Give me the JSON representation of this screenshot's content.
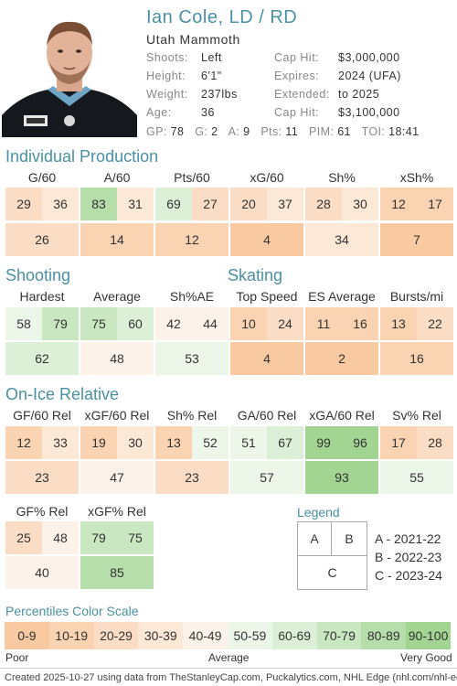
{
  "player": {
    "name": "Ian Cole, LD / RD",
    "team": "Utah Mammoth"
  },
  "bio": {
    "shoots_label": "Shoots:",
    "shoots": "Left",
    "height_label": "Height:",
    "height": "6'1\"",
    "weight_label": "Weight:",
    "weight": "237lbs",
    "age_label": "Age:",
    "age": "36",
    "caphit1_label": "Cap Hit:",
    "caphit1": "$3,000,000",
    "expires_label": "Expires:",
    "expires": "2024 (UFA)",
    "extended_label": "Extended:",
    "extended": "to 2025",
    "caphit2_label": "Cap Hit:",
    "caphit2": "$3,100,000"
  },
  "stats": {
    "gp_label": "GP:",
    "gp": "78",
    "g_label": "G:",
    "g": "2",
    "a_label": "A:",
    "a": "9",
    "pts_label": "Pts:",
    "pts": "11",
    "pim_label": "PIM:",
    "pim": "61",
    "toi_label": "TOI:",
    "toi": "18:41"
  },
  "sections": {
    "individual": "Individual Production",
    "shooting": "Shooting",
    "skating": "Skating",
    "onice": "On-Ice Relative"
  },
  "individual": [
    {
      "label": "G/60",
      "a": "29",
      "b": "36",
      "c": "26"
    },
    {
      "label": "A/60",
      "a": "83",
      "b": "31",
      "c": "14"
    },
    {
      "label": "Pts/60",
      "a": "69",
      "b": "27",
      "c": "12"
    },
    {
      "label": "xG/60",
      "a": "20",
      "b": "37",
      "c": "4"
    },
    {
      "label": "Sh%",
      "a": "28",
      "b": "30",
      "c": "34"
    },
    {
      "label": "xSh%",
      "a": "12",
      "b": "17",
      "c": "7"
    }
  ],
  "shooting": [
    {
      "label": "Hardest",
      "a": "58",
      "b": "79",
      "c": "62"
    },
    {
      "label": "Average",
      "a": "75",
      "b": "60",
      "c": "48"
    },
    {
      "label": "Sh%AE",
      "a": "42",
      "b": "44",
      "c": "53"
    }
  ],
  "skating": [
    {
      "label": "Top Speed",
      "a": "10",
      "b": "24",
      "c": "4"
    },
    {
      "label": "ES Average",
      "a": "11",
      "b": "16",
      "c": "2"
    },
    {
      "label": "Bursts/mi",
      "a": "13",
      "b": "22",
      "c": "16"
    }
  ],
  "onice_row1": [
    {
      "label": "GF/60 Rel",
      "a": "12",
      "b": "33",
      "c": "23"
    },
    {
      "label": "xGF/60 Rel",
      "a": "19",
      "b": "30",
      "c": "47"
    },
    {
      "label": "Sh% Rel",
      "a": "13",
      "b": "52",
      "c": "23"
    },
    {
      "label": "GA/60 Rel",
      "a": "51",
      "b": "67",
      "c": "57"
    },
    {
      "label": "xGA/60 Rel",
      "a": "99",
      "b": "96",
      "c": "93"
    },
    {
      "label": "Sv% Rel",
      "a": "17",
      "b": "28",
      "c": "55"
    }
  ],
  "onice_row2": [
    {
      "label": "GF% Rel",
      "a": "25",
      "b": "48",
      "c": "40"
    },
    {
      "label": "xGF% Rel",
      "a": "79",
      "b": "75",
      "c": "85"
    }
  ],
  "legend": {
    "title": "Legend",
    "a": "A",
    "b": "B",
    "c": "C",
    "a_text": "A - 2021-22",
    "b_text": "B - 2022-23",
    "c_text": "C - 2023-24"
  },
  "scale": {
    "title": "Percentiles Color Scale",
    "buckets": [
      "0-9",
      "10-19",
      "20-29",
      "30-39",
      "40-49",
      "50-59",
      "60-69",
      "70-79",
      "80-89",
      "90-100"
    ],
    "colors": [
      "#f9c9a2",
      "#fad3b3",
      "#fbddc5",
      "#fce8d7",
      "#fdf2e9",
      "#ecf6e9",
      "#dcefd7",
      "#c9e7c1",
      "#b6deaa",
      "#a3d592"
    ],
    "poor": "Poor",
    "average": "Average",
    "very_good": "Very Good"
  },
  "footer": "Created 2025-10-27 using data from TheStanleyCap.com, Puckalytics.com, NHL Edge (nhl.com/nhl-edge)."
}
